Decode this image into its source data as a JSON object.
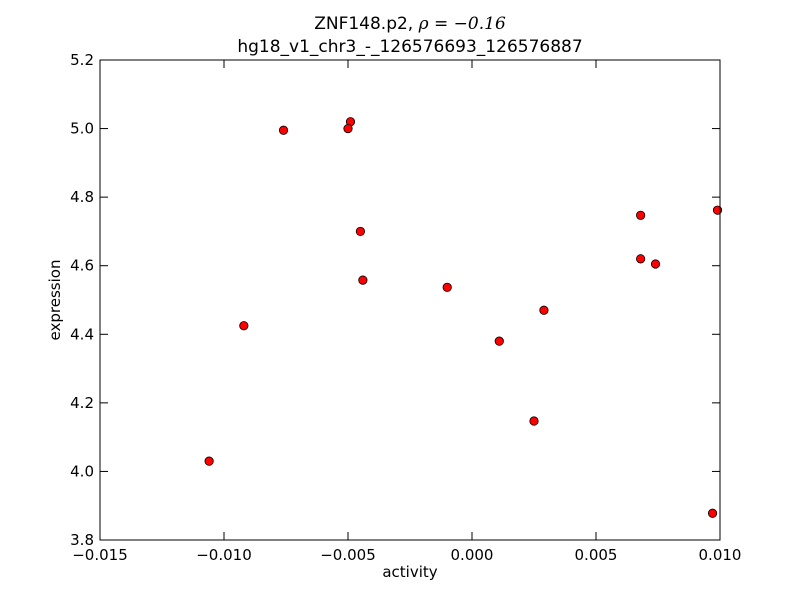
{
  "chart_data": {
    "type": "scatter",
    "title_line1_prefix": "ZNF148.p2, ",
    "title_line1_stat": "ρ = −0.16",
    "title_line2": "hg18_v1_chr3_-_126576693_126576887",
    "xlabel": "activity",
    "ylabel": "expression",
    "xlim": [
      -0.015,
      0.01
    ],
    "ylim": [
      3.8,
      5.2
    ],
    "xticks": [
      -0.015,
      -0.01,
      -0.005,
      0.0,
      0.005,
      0.01
    ],
    "xtick_labels": [
      "−0.015",
      "−0.010",
      "−0.005",
      "0.000",
      "0.005",
      "0.010"
    ],
    "yticks": [
      3.8,
      4.0,
      4.2,
      4.4,
      4.6,
      4.8,
      5.0,
      5.2
    ],
    "ytick_labels": [
      "3.8",
      "4.0",
      "4.2",
      "4.4",
      "4.6",
      "4.8",
      "5.0",
      "5.2"
    ],
    "grid": false,
    "marker_color": "#ff0000",
    "marker_edge_color": "#000000",
    "points": [
      {
        "x": -0.0106,
        "y": 4.03
      },
      {
        "x": -0.0092,
        "y": 4.425
      },
      {
        "x": -0.0076,
        "y": 4.995
      },
      {
        "x": -0.0049,
        "y": 5.02
      },
      {
        "x": -0.005,
        "y": 5.0
      },
      {
        "x": -0.0045,
        "y": 4.7
      },
      {
        "x": -0.0044,
        "y": 4.558
      },
      {
        "x": -0.001,
        "y": 4.537
      },
      {
        "x": 0.0011,
        "y": 4.38
      },
      {
        "x": 0.0029,
        "y": 4.47
      },
      {
        "x": 0.0025,
        "y": 4.147
      },
      {
        "x": 0.0068,
        "y": 4.747
      },
      {
        "x": 0.0068,
        "y": 4.62
      },
      {
        "x": 0.0074,
        "y": 4.605
      },
      {
        "x": 0.0099,
        "y": 4.762
      },
      {
        "x": 0.0097,
        "y": 3.878
      }
    ]
  }
}
